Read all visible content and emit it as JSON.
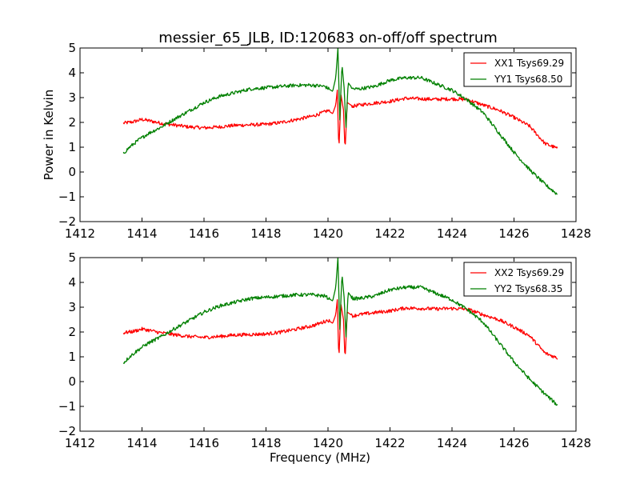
{
  "chart_data": [
    {
      "type": "line",
      "title": "messier_65_JLB, ID:120683 on-off/off spectrum",
      "xlabel": "",
      "ylabel": "Power in Kelvin",
      "xlim": [
        1412,
        1428
      ],
      "ylim": [
        -2,
        5
      ],
      "xticks": [
        "1412",
        "1414",
        "1416",
        "1418",
        "1420",
        "1422",
        "1424",
        "1426",
        "1428"
      ],
      "yticks": [
        "5",
        "4",
        "3",
        "2",
        "1",
        "0",
        "−1",
        "−2"
      ],
      "grid": false,
      "legend": "top-right",
      "series": [
        {
          "name": "XX1 Tsys69.29",
          "color": "#ff0000",
          "points": [
            [
              1413.4,
              1.97
            ],
            [
              1413.7,
              2.02
            ],
            [
              1414.0,
              2.12
            ],
            [
              1414.3,
              2.05
            ],
            [
              1414.6,
              1.97
            ],
            [
              1415.0,
              1.9
            ],
            [
              1415.5,
              1.82
            ],
            [
              1416.0,
              1.78
            ],
            [
              1416.5,
              1.82
            ],
            [
              1417.0,
              1.88
            ],
            [
              1417.5,
              1.9
            ],
            [
              1418.0,
              1.92
            ],
            [
              1418.5,
              2.0
            ],
            [
              1419.0,
              2.12
            ],
            [
              1419.5,
              2.25
            ],
            [
              1419.8,
              2.38
            ],
            [
              1420.0,
              2.48
            ],
            [
              1420.15,
              2.35
            ],
            [
              1420.25,
              2.7
            ],
            [
              1420.3,
              3.3
            ],
            [
              1420.35,
              0.85
            ],
            [
              1420.42,
              3.1
            ],
            [
              1420.5,
              2.5
            ],
            [
              1420.55,
              0.85
            ],
            [
              1420.62,
              2.8
            ],
            [
              1420.8,
              2.65
            ],
            [
              1421.0,
              2.7
            ],
            [
              1421.5,
              2.78
            ],
            [
              1422.0,
              2.85
            ],
            [
              1422.5,
              2.97
            ],
            [
              1423.0,
              2.95
            ],
            [
              1423.5,
              2.93
            ],
            [
              1424.0,
              2.95
            ],
            [
              1424.5,
              2.92
            ],
            [
              1425.0,
              2.7
            ],
            [
              1425.5,
              2.5
            ],
            [
              1426.0,
              2.2
            ],
            [
              1426.5,
              1.85
            ],
            [
              1427.0,
              1.15
            ],
            [
              1427.4,
              0.95
            ]
          ]
        },
        {
          "name": "YY1 Tsys68.50",
          "color": "#008000",
          "points": [
            [
              1413.4,
              0.75
            ],
            [
              1413.6,
              1.0
            ],
            [
              1413.9,
              1.3
            ],
            [
              1414.2,
              1.55
            ],
            [
              1414.6,
              1.8
            ],
            [
              1415.0,
              2.1
            ],
            [
              1415.5,
              2.45
            ],
            [
              1416.0,
              2.8
            ],
            [
              1416.5,
              3.05
            ],
            [
              1417.0,
              3.2
            ],
            [
              1417.5,
              3.35
            ],
            [
              1418.0,
              3.4
            ],
            [
              1418.5,
              3.45
            ],
            [
              1419.0,
              3.5
            ],
            [
              1419.5,
              3.5
            ],
            [
              1419.9,
              3.45
            ],
            [
              1420.15,
              3.25
            ],
            [
              1420.25,
              3.8
            ],
            [
              1420.32,
              5.0
            ],
            [
              1420.38,
              2.1
            ],
            [
              1420.45,
              4.35
            ],
            [
              1420.52,
              3.4
            ],
            [
              1420.58,
              1.8
            ],
            [
              1420.65,
              3.6
            ],
            [
              1420.8,
              3.35
            ],
            [
              1421.0,
              3.35
            ],
            [
              1421.5,
              3.45
            ],
            [
              1422.0,
              3.7
            ],
            [
              1422.5,
              3.8
            ],
            [
              1423.0,
              3.8
            ],
            [
              1423.5,
              3.55
            ],
            [
              1424.0,
              3.3
            ],
            [
              1424.5,
              2.9
            ],
            [
              1425.0,
              2.4
            ],
            [
              1425.5,
              1.6
            ],
            [
              1426.0,
              0.8
            ],
            [
              1426.5,
              0.1
            ],
            [
              1427.0,
              -0.5
            ],
            [
              1427.4,
              -0.9
            ]
          ]
        }
      ]
    },
    {
      "type": "line",
      "title": "",
      "xlabel": "Frequency (MHz)",
      "ylabel": "",
      "xlim": [
        1412,
        1428
      ],
      "ylim": [
        -2,
        5
      ],
      "xticks": [
        "1412",
        "1414",
        "1416",
        "1418",
        "1420",
        "1422",
        "1424",
        "1426",
        "1428"
      ],
      "yticks": [
        "5",
        "4",
        "3",
        "2",
        "1",
        "0",
        "−1",
        "−2"
      ],
      "grid": false,
      "legend": "top-right",
      "series": [
        {
          "name": "XX2 Tsys69.29",
          "color": "#ff0000",
          "points": [
            [
              1413.4,
              1.97
            ],
            [
              1413.7,
              2.02
            ],
            [
              1414.0,
              2.12
            ],
            [
              1414.3,
              2.05
            ],
            [
              1414.6,
              1.97
            ],
            [
              1415.0,
              1.9
            ],
            [
              1415.5,
              1.82
            ],
            [
              1416.0,
              1.78
            ],
            [
              1416.5,
              1.82
            ],
            [
              1417.0,
              1.88
            ],
            [
              1417.5,
              1.9
            ],
            [
              1418.0,
              1.92
            ],
            [
              1418.5,
              2.0
            ],
            [
              1419.0,
              2.12
            ],
            [
              1419.5,
              2.25
            ],
            [
              1419.8,
              2.38
            ],
            [
              1420.0,
              2.48
            ],
            [
              1420.15,
              2.35
            ],
            [
              1420.25,
              2.7
            ],
            [
              1420.3,
              3.3
            ],
            [
              1420.35,
              0.85
            ],
            [
              1420.42,
              3.1
            ],
            [
              1420.5,
              2.5
            ],
            [
              1420.55,
              0.85
            ],
            [
              1420.62,
              2.8
            ],
            [
              1420.8,
              2.65
            ],
            [
              1421.0,
              2.7
            ],
            [
              1421.5,
              2.78
            ],
            [
              1422.0,
              2.85
            ],
            [
              1422.5,
              2.97
            ],
            [
              1423.0,
              2.95
            ],
            [
              1423.5,
              2.93
            ],
            [
              1424.0,
              2.95
            ],
            [
              1424.5,
              2.92
            ],
            [
              1425.0,
              2.7
            ],
            [
              1425.5,
              2.5
            ],
            [
              1426.0,
              2.2
            ],
            [
              1426.5,
              1.85
            ],
            [
              1427.0,
              1.15
            ],
            [
              1427.4,
              0.95
            ]
          ]
        },
        {
          "name": "YY2 Tsys68.35",
          "color": "#008000",
          "points": [
            [
              1413.4,
              0.75
            ],
            [
              1413.6,
              1.0
            ],
            [
              1413.9,
              1.3
            ],
            [
              1414.2,
              1.55
            ],
            [
              1414.6,
              1.8
            ],
            [
              1415.0,
              2.1
            ],
            [
              1415.5,
              2.45
            ],
            [
              1416.0,
              2.8
            ],
            [
              1416.5,
              3.05
            ],
            [
              1417.0,
              3.2
            ],
            [
              1417.5,
              3.35
            ],
            [
              1418.0,
              3.4
            ],
            [
              1418.5,
              3.45
            ],
            [
              1419.0,
              3.5
            ],
            [
              1419.5,
              3.5
            ],
            [
              1419.9,
              3.45
            ],
            [
              1420.15,
              3.25
            ],
            [
              1420.25,
              3.8
            ],
            [
              1420.32,
              5.0
            ],
            [
              1420.38,
              2.1
            ],
            [
              1420.45,
              4.35
            ],
            [
              1420.52,
              3.4
            ],
            [
              1420.58,
              1.8
            ],
            [
              1420.65,
              3.6
            ],
            [
              1420.8,
              3.35
            ],
            [
              1421.0,
              3.35
            ],
            [
              1421.5,
              3.45
            ],
            [
              1422.0,
              3.7
            ],
            [
              1422.5,
              3.8
            ],
            [
              1423.0,
              3.8
            ],
            [
              1423.5,
              3.55
            ],
            [
              1424.0,
              3.3
            ],
            [
              1424.5,
              2.9
            ],
            [
              1425.0,
              2.4
            ],
            [
              1425.5,
              1.6
            ],
            [
              1426.0,
              0.8
            ],
            [
              1426.5,
              0.1
            ],
            [
              1427.0,
              -0.5
            ],
            [
              1427.4,
              -0.95
            ]
          ]
        }
      ]
    }
  ]
}
